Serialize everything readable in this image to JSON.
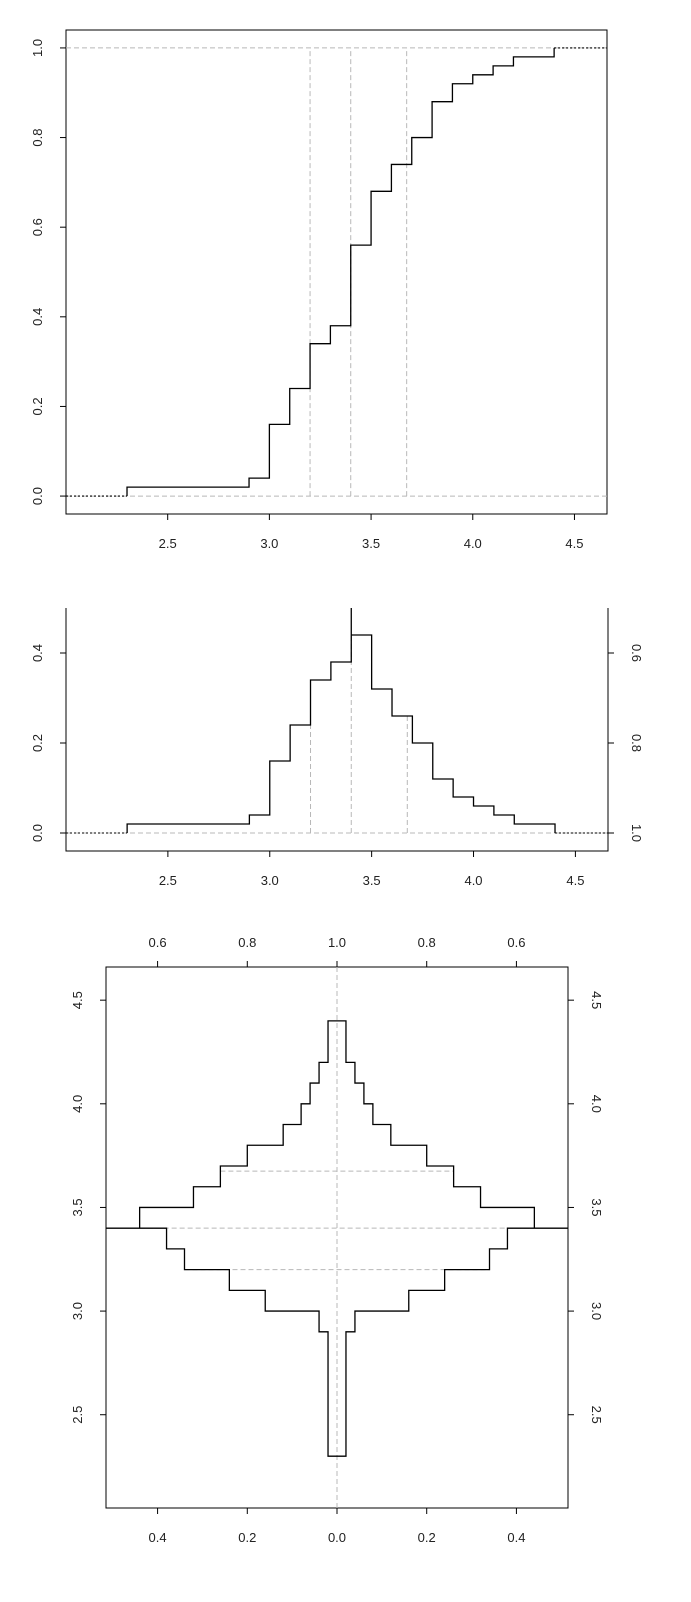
{
  "figure": "Sepal-width style empirical distribution plots",
  "chart_data": [
    {
      "id": "ecdf",
      "type": "line",
      "description": "Empirical cumulative distribution (step function)",
      "x": [
        2.3,
        2.9,
        3.0,
        3.1,
        3.2,
        3.3,
        3.4,
        3.5,
        3.6,
        3.7,
        3.8,
        3.9,
        4.0,
        4.1,
        4.2,
        4.4
      ],
      "y": [
        0.02,
        0.04,
        0.16,
        0.24,
        0.34,
        0.38,
        0.56,
        0.68,
        0.74,
        0.8,
        0.88,
        0.92,
        0.94,
        0.96,
        0.98,
        1.0
      ],
      "quartiles": [
        3.2,
        3.4,
        3.675
      ],
      "xlim": [
        2.0,
        4.66
      ],
      "ylim": [
        -0.04,
        1.04
      ],
      "xticks": [
        "2.5",
        "3.0",
        "3.5",
        "4.0",
        "4.5"
      ],
      "yticks": [
        "0.0",
        "0.2",
        "0.4",
        "0.6",
        "0.8",
        "1.0"
      ],
      "right_ticks": [],
      "grid": false,
      "frame": "box"
    },
    {
      "id": "mountain",
      "type": "line",
      "description": "Folded empirical CDF (mountain plot)",
      "x": [
        2.3,
        2.9,
        3.0,
        3.1,
        3.2,
        3.3,
        3.4,
        3.5,
        3.6,
        3.7,
        3.8,
        3.9,
        4.0,
        4.1,
        4.2,
        4.4
      ],
      "y": [
        0.02,
        0.04,
        0.16,
        0.24,
        0.34,
        0.38,
        0.44,
        0.32,
        0.26,
        0.2,
        0.12,
        0.08,
        0.06,
        0.04,
        0.02,
        0.0
      ],
      "peak_x": 3.4,
      "quartiles": [
        3.2,
        3.4,
        3.675
      ],
      "xlim": [
        2.0,
        4.66
      ],
      "ylim": [
        -0.04,
        0.5
      ],
      "xticks": [
        "2.5",
        "3.0",
        "3.5",
        "4.0",
        "4.5"
      ],
      "yticks": [
        "0.0",
        "0.2",
        "0.4"
      ],
      "right_ticks": [
        "1.0",
        "0.8",
        "0.6"
      ],
      "grid": false,
      "frame": "open-top"
    },
    {
      "id": "violin",
      "type": "line",
      "description": "Symmetric mountain plot (horizontal folded CDF, mirrored)",
      "y": [
        2.3,
        2.9,
        3.0,
        3.1,
        3.2,
        3.3,
        3.4,
        3.5,
        3.6,
        3.7,
        3.8,
        3.9,
        4.0,
        4.1,
        4.2,
        4.4
      ],
      "half_width": [
        0.02,
        0.04,
        0.16,
        0.24,
        0.34,
        0.38,
        0.44,
        0.32,
        0.26,
        0.2,
        0.12,
        0.08,
        0.06,
        0.04,
        0.02,
        0.0
      ],
      "peak_y": 3.4,
      "quartiles": [
        3.2,
        3.4,
        3.675
      ],
      "xlim": [
        -0.515,
        0.515
      ],
      "ylim": [
        2.05,
        4.66
      ],
      "bottom_ticks": [
        "0.4",
        "0.2",
        "0.0",
        "0.2",
        "0.4"
      ],
      "top_ticks": [
        "0.6",
        "0.8",
        "1.0",
        "0.8",
        "0.6"
      ],
      "yticks": [
        "2.5",
        "3.0",
        "3.5",
        "4.0",
        "4.5"
      ],
      "grid": false,
      "frame": "box"
    }
  ]
}
